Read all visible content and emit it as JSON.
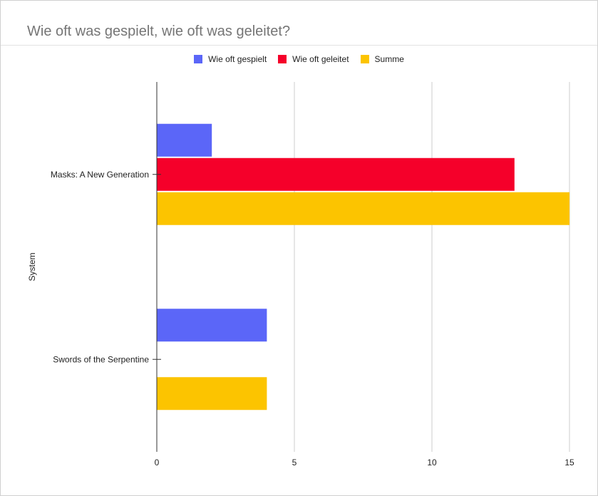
{
  "chart_data": {
    "type": "bar",
    "orientation": "horizontal",
    "title": "Wie oft was gespielt, wie oft was geleitet?",
    "ylabel": "System",
    "xlabel": "",
    "categories": [
      "Masks: A New Generation",
      "Swords of the Serpentine"
    ],
    "series": [
      {
        "name": "Wie oft gespielt",
        "color": "#5b66f8",
        "values": [
          2,
          4
        ]
      },
      {
        "name": "Wie oft geleitet",
        "color": "#f5002a",
        "values": [
          13,
          0
        ]
      },
      {
        "name": "Summe",
        "color": "#fcc400",
        "values": [
          15,
          4
        ]
      }
    ],
    "xlim": [
      0,
      15
    ],
    "xticks": [
      0,
      5,
      10,
      15
    ],
    "grid": true,
    "legend_position": "top"
  }
}
